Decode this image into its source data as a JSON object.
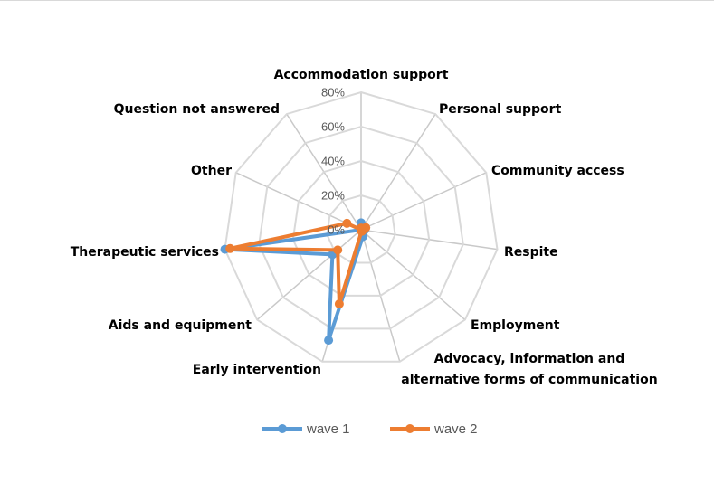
{
  "chart_data": {
    "type": "radar",
    "title": "",
    "categories": [
      "Accommodation support",
      "Personal support",
      "Community access",
      "Respite",
      "Employment",
      "Advocacy, information and alternative forms of communication",
      "Early intervention",
      "Aids and equipment",
      "Therapeutic services",
      "Other",
      "Question not answered"
    ],
    "category_lines": [
      [
        "Accommodation support"
      ],
      [
        "Personal support"
      ],
      [
        "Community access"
      ],
      [
        "Respite"
      ],
      [
        "Employment"
      ],
      [
        "Advocacy, information and",
        "alternative forms of communication"
      ],
      [
        "Early intervention"
      ],
      [
        "Aids and equipment"
      ],
      [
        "Therapeutic services"
      ],
      [
        "Other"
      ],
      [
        "Question not answered"
      ]
    ],
    "r_ticks": [
      "0%",
      "20%",
      "40%",
      "60%",
      "80%"
    ],
    "r_range": [
      0,
      80
    ],
    "r_unit": "%",
    "series": [
      {
        "name": "wave 1",
        "color": "#5b9bd5",
        "values": [
          4,
          1,
          0,
          2,
          1,
          4,
          67,
          22,
          80,
          0,
          0
        ]
      },
      {
        "name": "wave 2",
        "color": "#ed7d31",
        "values": [
          1,
          1,
          3,
          1,
          1,
          1,
          45,
          18,
          77,
          9,
          0
        ]
      }
    ],
    "legend_position": "bottom",
    "grid": true
  }
}
